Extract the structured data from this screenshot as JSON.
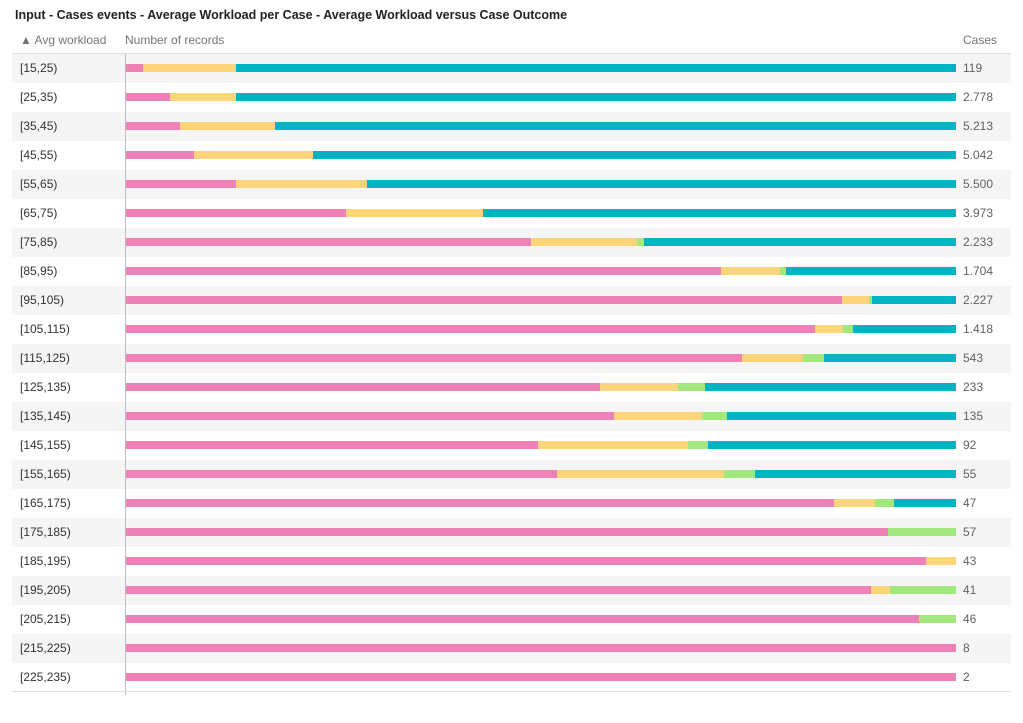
{
  "title": "Input - Cases events - Average Workload per Case - Average Workload versus Case Outcome",
  "header": {
    "sort_label": "▲ Avg workload",
    "measure_label": "Number of records",
    "cases_label": "Cases"
  },
  "colors": [
    "#ee82b7",
    "#fcd57a",
    "#a2e87c",
    "#00b4c4"
  ],
  "chart_data": {
    "type": "bar",
    "orientation": "horizontal",
    "stacked": "100%",
    "categories": [
      "[15,25)",
      "[25,35)",
      "[35,45)",
      "[45,55)",
      "[55,65)",
      "[65,75)",
      "[75,85)",
      "[85,95)",
      "[95,105)",
      "[105,115)",
      "[115,125)",
      "[125,135)",
      "[135,145)",
      "[145,155)",
      "[155,165)",
      "[165,175)",
      "[175,185)",
      "[185,195)",
      "[195,205)",
      "[205,215)",
      "[215,225)",
      "[225,235)"
    ],
    "cases": [
      "119",
      "2.778",
      "5.213",
      "5.042",
      "5.500",
      "3.973",
      "2.233",
      "1.704",
      "2.227",
      "1.418",
      "543",
      "233",
      "135",
      "92",
      "55",
      "47",
      "57",
      "43",
      "41",
      "46",
      "8",
      "2"
    ],
    "series": [
      {
        "values": [
          0.022,
          0.054,
          0.066,
          0.083,
          0.134,
          0.266,
          0.488,
          0.717,
          0.863,
          0.83,
          0.743,
          0.571,
          0.588,
          0.497,
          0.52,
          0.853,
          0.918,
          0.964,
          0.898,
          0.955,
          1.0,
          1.0
        ]
      },
      {
        "values": [
          0.111,
          0.08,
          0.114,
          0.143,
          0.157,
          0.165,
          0.128,
          0.071,
          0.032,
          0.034,
          0.073,
          0.094,
          0.106,
          0.18,
          0.201,
          0.05,
          0.0,
          0.036,
          0.022,
          0.0,
          0.0,
          0.0
        ]
      },
      {
        "values": [
          0.0,
          0.0,
          0.0,
          0.0,
          0.0,
          0.0,
          0.008,
          0.008,
          0.004,
          0.012,
          0.025,
          0.033,
          0.03,
          0.025,
          0.037,
          0.023,
          0.082,
          0.0,
          0.08,
          0.045,
          0.0,
          0.0
        ]
      },
      {
        "values": [
          0.867,
          0.866,
          0.82,
          0.774,
          0.709,
          0.569,
          0.376,
          0.204,
          0.101,
          0.124,
          0.159,
          0.302,
          0.276,
          0.298,
          0.242,
          0.074,
          0.0,
          0.0,
          0.0,
          0.0,
          0.0,
          0.0
        ]
      }
    ]
  }
}
